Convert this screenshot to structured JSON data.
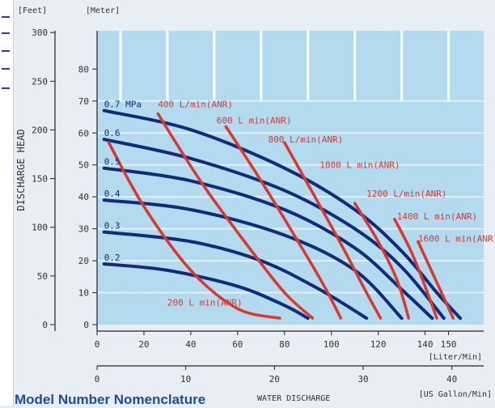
{
  "chart_data": {
    "type": "line",
    "title": "",
    "y_left_unit": "[Feet]",
    "y_right_unit": "[Meter]",
    "ylabel": "DISCHARGE  HEAD",
    "xlabel": "WATER DISCHARGE",
    "x_unit_lpm": "[Liter/Min]",
    "x_unit_gpm": "[US Gallon/Min]",
    "x_ticks_lpm": [
      "0",
      "20",
      "40",
      "60",
      "80",
      "100",
      "120",
      "140",
      "150"
    ],
    "x_ticks_lpm_values": [
      0,
      20,
      40,
      60,
      80,
      100,
      120,
      140,
      150
    ],
    "x_ticks_gpm": [
      "0",
      "10",
      "20",
      "30",
      "40"
    ],
    "x_ticks_gpm_values": [
      0,
      10,
      20,
      30,
      40
    ],
    "y_ticks_feet": [
      "0",
      "50",
      "100",
      "150",
      "200",
      "250",
      "300"
    ],
    "y_ticks_feet_values": [
      0,
      50,
      100,
      150,
      200,
      250,
      300
    ],
    "y_ticks_meter": [
      "0",
      "10",
      "20",
      "30",
      "40",
      "50",
      "60",
      "70",
      "80"
    ],
    "y_ticks_meter_values": [
      0,
      10,
      20,
      30,
      40,
      50,
      60,
      70,
      80
    ],
    "xlim": [
      0,
      165
    ],
    "ylim_meter": [
      0,
      92
    ],
    "grid": true,
    "colors": {
      "pressure": "#0f2b7a",
      "air": "#d63a2f",
      "plot_bg": "#b4daf0",
      "grid": "#ffffff"
    },
    "series": [
      {
        "name": "0.7 MPa",
        "group": "pressure",
        "points": [
          [
            3,
            67
          ],
          [
            40,
            61
          ],
          [
            80,
            49
          ],
          [
            110,
            36
          ],
          [
            130,
            23
          ],
          [
            145,
            10
          ],
          [
            155,
            2
          ]
        ]
      },
      {
        "name": "0.6",
        "group": "pressure",
        "points": [
          [
            3,
            58
          ],
          [
            40,
            52
          ],
          [
            80,
            42
          ],
          [
            110,
            30
          ],
          [
            130,
            18
          ],
          [
            148,
            2
          ]
        ]
      },
      {
        "name": "0.5",
        "group": "pressure",
        "points": [
          [
            3,
            49
          ],
          [
            40,
            45
          ],
          [
            80,
            36
          ],
          [
            110,
            24
          ],
          [
            130,
            11
          ],
          [
            143,
            2
          ]
        ]
      },
      {
        "name": "0.4",
        "group": "pressure",
        "points": [
          [
            3,
            39
          ],
          [
            40,
            36
          ],
          [
            80,
            28
          ],
          [
            110,
            17
          ],
          [
            130,
            2
          ]
        ]
      },
      {
        "name": "0.3",
        "group": "pressure",
        "points": [
          [
            3,
            29
          ],
          [
            40,
            26
          ],
          [
            70,
            20
          ],
          [
            95,
            11
          ],
          [
            115,
            2
          ]
        ]
      },
      {
        "name": "0.2",
        "group": "pressure",
        "points": [
          [
            3,
            19
          ],
          [
            30,
            17
          ],
          [
            60,
            12
          ],
          [
            80,
            6
          ],
          [
            90,
            2
          ]
        ]
      },
      {
        "name": "400 L/min(ANR)",
        "group": "air",
        "points": [
          [
            5,
            57
          ],
          [
            20,
            37
          ],
          [
            40,
            17
          ],
          [
            60,
            5
          ],
          [
            78,
            2
          ]
        ]
      },
      {
        "name": "600 L min(ANR)",
        "group": "air",
        "points": [
          [
            26,
            66
          ],
          [
            45,
            44
          ],
          [
            65,
            24
          ],
          [
            80,
            10
          ],
          [
            92,
            2
          ]
        ]
      },
      {
        "name": "800 L/min(ANR)",
        "group": "air",
        "points": [
          [
            55,
            62
          ],
          [
            70,
            45
          ],
          [
            85,
            27
          ],
          [
            97,
            12
          ],
          [
            104,
            2
          ]
        ]
      },
      {
        "name": "1000 L min(ANR)",
        "group": "air",
        "points": [
          [
            80,
            57
          ],
          [
            93,
            40
          ],
          [
            105,
            24
          ],
          [
            115,
            10
          ],
          [
            121,
            2
          ]
        ]
      },
      {
        "name": "1200 L/min(ANR)",
        "group": "air",
        "points": [
          [
            110,
            38
          ],
          [
            120,
            26
          ],
          [
            128,
            14
          ],
          [
            133,
            2
          ]
        ]
      },
      {
        "name": "1400 L min(ANR)",
        "group": "air",
        "points": [
          [
            127,
            33
          ],
          [
            134,
            23
          ],
          [
            140,
            12
          ],
          [
            145,
            2
          ]
        ]
      },
      {
        "name": "1600 L min(ANR)",
        "group": "air",
        "points": [
          [
            137,
            26
          ],
          [
            142,
            18
          ],
          [
            147,
            10
          ],
          [
            152,
            2
          ]
        ]
      },
      {
        "name": "200 L min(ANR)",
        "group": "air",
        "points": []
      }
    ],
    "annotations": [
      {
        "text": "0.7 MPa",
        "x": 3,
        "y": 68,
        "color": "pressure"
      },
      {
        "text": "0.6",
        "x": 3,
        "y": 59,
        "color": "pressure"
      },
      {
        "text": "0.5",
        "x": 3,
        "y": 50,
        "color": "pressure"
      },
      {
        "text": "0.4",
        "x": 3,
        "y": 40,
        "color": "pressure"
      },
      {
        "text": "0.3",
        "x": 3,
        "y": 30,
        "color": "pressure"
      },
      {
        "text": "0.2",
        "x": 3,
        "y": 20,
        "color": "pressure"
      },
      {
        "text": "400 L/min(ANR)",
        "x": 26,
        "y": 68,
        "color": "air"
      },
      {
        "text": "600 L min(ANR)",
        "x": 51,
        "y": 63,
        "color": "air"
      },
      {
        "text": "800 L/min(ANR)",
        "x": 73,
        "y": 57,
        "color": "air"
      },
      {
        "text": "1000 L min(ANR)",
        "x": 95,
        "y": 49,
        "color": "air"
      },
      {
        "text": "1200 L/min(ANR)",
        "x": 115,
        "y": 40,
        "color": "air"
      },
      {
        "text": "1400 L min(ANR)",
        "x": 128,
        "y": 33,
        "color": "air"
      },
      {
        "text": "1600 L min(ANR)",
        "x": 137,
        "y": 26,
        "color": "air"
      },
      {
        "text": "200 L min(ANR)",
        "x": 30,
        "y": 6,
        "color": "air"
      }
    ]
  },
  "footer": {
    "title": "Model Number Nomenclature",
    "axis_caption": "WATER DISCHARGE"
  }
}
